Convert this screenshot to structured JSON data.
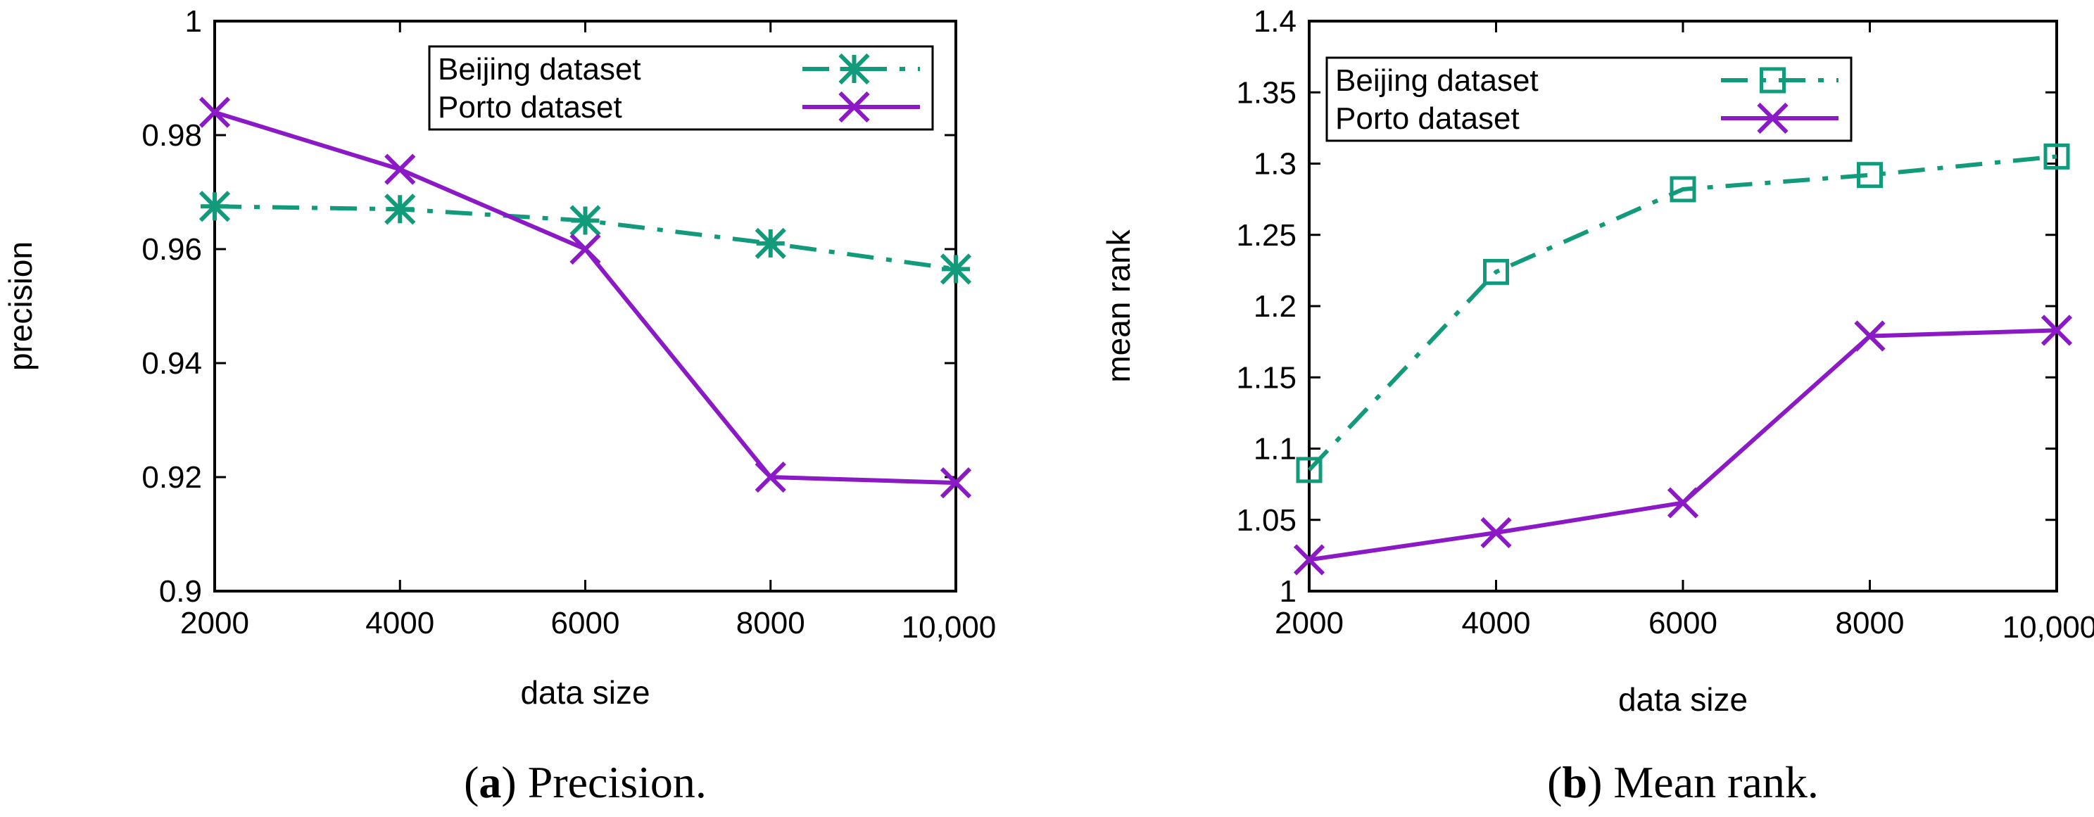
{
  "colors": {
    "beijing": "#129b7a",
    "porto": "#8b1ac6",
    "axis": "#000000"
  },
  "chart_data": [
    {
      "type": "line",
      "caption_letter": "a",
      "caption_text": "Precision.",
      "xlabel": "data size",
      "ylabel": "precision",
      "x": [
        2000,
        4000,
        6000,
        8000,
        10000
      ],
      "xtick_labels": [
        "2000",
        "4000",
        "6000",
        "8000",
        "10,000"
      ],
      "ylim": [
        0.9,
        1.0
      ],
      "yticks": [
        0.9,
        0.92,
        0.94,
        0.96,
        0.98,
        1.0
      ],
      "ytick_labels": [
        "0.9",
        "0.92",
        "0.94",
        "0.96",
        "0.98",
        "1"
      ],
      "legend_position": "top-right",
      "series": [
        {
          "name": "Beijing dataset",
          "marker": "asterisk",
          "style": "dashdot",
          "color": "#129b7a",
          "values": [
            0.9675,
            0.967,
            0.965,
            0.961,
            0.9565
          ]
        },
        {
          "name": "Porto dataset",
          "marker": "x",
          "style": "solid",
          "color": "#8b1ac6",
          "values": [
            0.984,
            0.974,
            0.96,
            0.92,
            0.919
          ]
        }
      ]
    },
    {
      "type": "line",
      "caption_letter": "b",
      "caption_text": "Mean rank.",
      "xlabel": "data size",
      "ylabel": "mean rank",
      "x": [
        2000,
        4000,
        6000,
        8000,
        10000
      ],
      "xtick_labels": [
        "2000",
        "4000",
        "6000",
        "8000",
        "10,000"
      ],
      "ylim": [
        1.0,
        1.4
      ],
      "yticks": [
        1.0,
        1.05,
        1.1,
        1.15,
        1.2,
        1.25,
        1.3,
        1.35,
        1.4
      ],
      "ytick_labels": [
        "1",
        "1.05",
        "1.1",
        "1.15",
        "1.2",
        "1.25",
        "1.3",
        "1.35",
        "1.4"
      ],
      "legend_position": "top-left",
      "series": [
        {
          "name": "Beijing dataset",
          "marker": "square",
          "style": "dashdot",
          "color": "#129b7a",
          "values": [
            1.085,
            1.224,
            1.282,
            1.292,
            1.305
          ]
        },
        {
          "name": "Porto dataset",
          "marker": "x",
          "style": "solid",
          "color": "#8b1ac6",
          "values": [
            1.022,
            1.041,
            1.062,
            1.179,
            1.183
          ]
        }
      ]
    }
  ]
}
